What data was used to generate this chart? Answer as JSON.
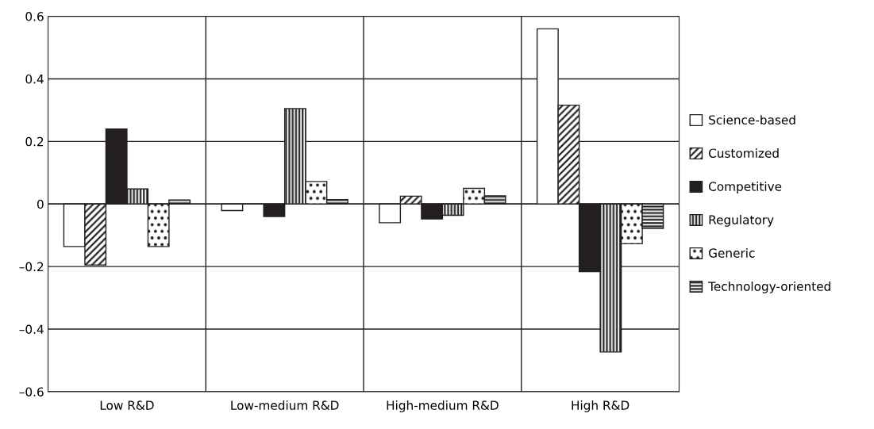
{
  "chart_data": {
    "type": "bar",
    "categories": [
      "Low R&D",
      "Low-medium R&D",
      "High-medium R&D",
      "High R&D"
    ],
    "series": [
      {
        "name": "Science-based",
        "color": "#ffffff",
        "values": [
          -0.136,
          -0.021,
          -0.06,
          0.56
        ]
      },
      {
        "name": "Customized",
        "color": "#231f20",
        "values": [
          -0.195,
          0,
          0.025,
          0.316
        ]
      },
      {
        "name": "Competitive",
        "color": "#231f20",
        "values": [
          0.24,
          -0.04,
          -0.048,
          -0.216
        ]
      },
      {
        "name": "Regulatory",
        "color": "#231f20",
        "values": [
          0.048,
          0.305,
          -0.036,
          -0.473
        ]
      },
      {
        "name": "Generic",
        "color": "#231f20",
        "values": [
          -0.136,
          0.072,
          0.05,
          -0.127
        ]
      },
      {
        "name": "Technology-oriented",
        "color": "#231f20",
        "values": [
          0.013,
          0.014,
          0.026,
          -0.078
        ]
      }
    ],
    "ylim": [
      -0.6,
      0.6
    ],
    "yticks": [
      {
        "value": -0.6,
        "label": "–0.6"
      },
      {
        "value": -0.4,
        "label": "–0.4"
      },
      {
        "value": -0.2,
        "label": "–0.2"
      },
      0,
      0.2,
      0.4,
      0.6
    ],
    "grid": true,
    "legend": "right"
  }
}
